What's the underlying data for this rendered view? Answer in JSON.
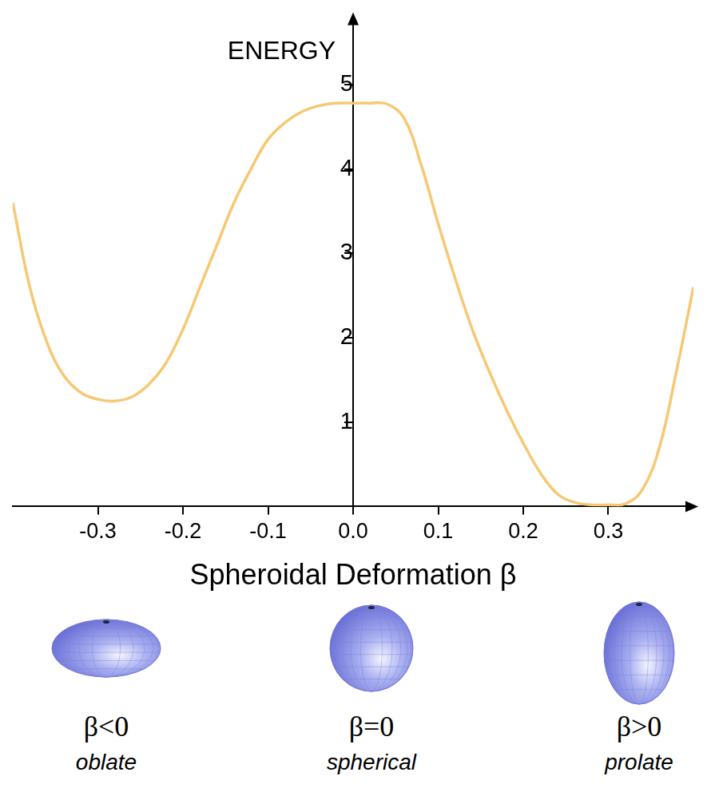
{
  "chart_data": {
    "type": "line",
    "ylabel": "ENERGY",
    "xlabel": "Spheroidal Deformation β",
    "x": [
      -0.4,
      -0.38,
      -0.36,
      -0.34,
      -0.32,
      -0.3,
      -0.28,
      -0.26,
      -0.24,
      -0.22,
      -0.2,
      -0.18,
      -0.16,
      -0.14,
      -0.12,
      -0.1,
      -0.08,
      -0.06,
      -0.04,
      -0.02,
      0.0,
      0.02,
      0.04,
      0.06,
      0.08,
      0.1,
      0.12,
      0.14,
      0.16,
      0.18,
      0.2,
      0.22,
      0.24,
      0.26,
      0.28,
      0.3,
      0.32,
      0.34,
      0.36,
      0.38,
      0.4
    ],
    "values": [
      3.6,
      2.6,
      1.95,
      1.55,
      1.35,
      1.27,
      1.25,
      1.3,
      1.45,
      1.7,
      2.1,
      2.6,
      3.1,
      3.6,
      4.0,
      4.35,
      4.55,
      4.68,
      4.75,
      4.78,
      4.78,
      4.78,
      4.77,
      4.6,
      4.05,
      3.35,
      2.7,
      2.1,
      1.6,
      1.15,
      0.75,
      0.4,
      0.15,
      0.05,
      0.02,
      0.02,
      0.03,
      0.2,
      0.7,
      1.6,
      2.6
    ],
    "color": "#f7c873",
    "marker": "none",
    "line_style": "solid",
    "xlim": [
      -0.4,
      0.4
    ],
    "ylim": [
      0,
      5.8
    ],
    "xticks": [
      -0.3,
      -0.2,
      -0.1,
      {
        "value": 0,
        "label": "0.0"
      },
      0.1,
      0.2,
      0.3
    ],
    "yticks": [
      1,
      2,
      3,
      4,
      5
    ],
    "grid": false
  },
  "shapes": [
    {
      "symbol": "β<0",
      "label": "oblate"
    },
    {
      "symbol": "β=0",
      "label": "spherical"
    },
    {
      "symbol": "β>0",
      "label": "prolate"
    }
  ]
}
